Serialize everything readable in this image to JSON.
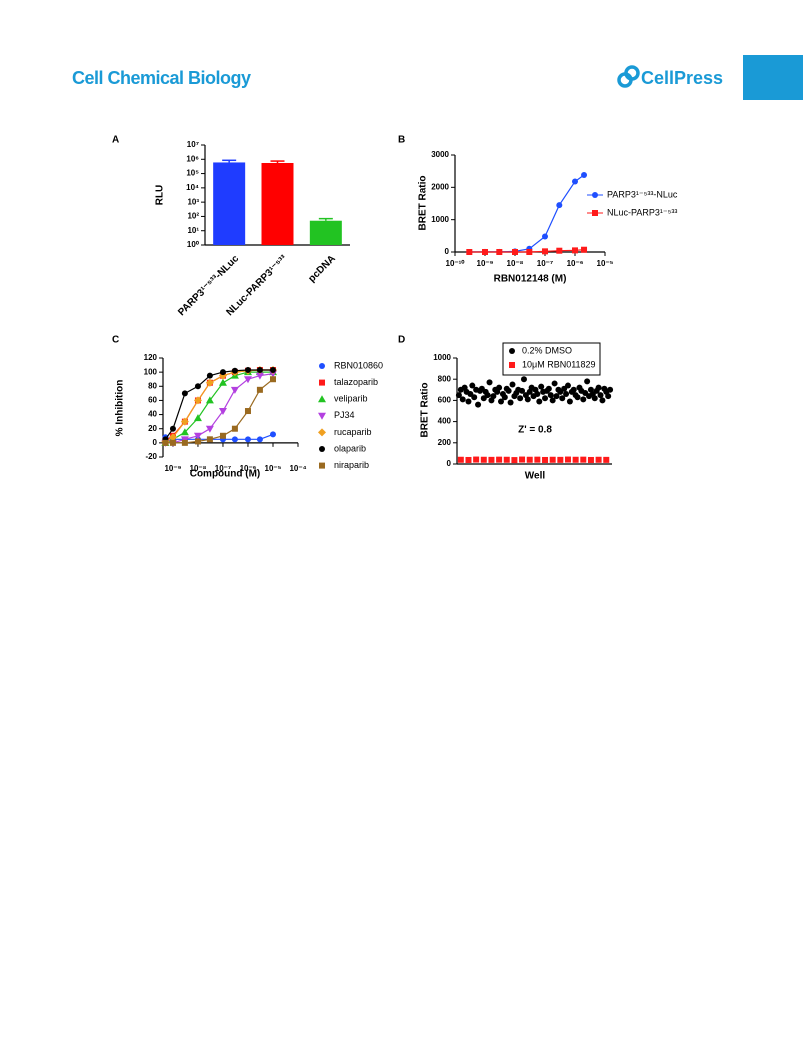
{
  "header": {
    "journal": "Cell Chemical Biology",
    "publisher": "CellPress"
  },
  "chart_data": [
    {
      "type": "bar",
      "panel": "A",
      "ylabel": "RLU",
      "categories": [
        "PARP3¹⁻⁵³³-NLuc",
        "NLuc-PARP3¹⁻⁵³³",
        "pcDNA"
      ],
      "values": [
        600000,
        550000,
        50
      ],
      "errors": [
        250000,
        200000,
        20
      ],
      "colors": [
        "#1f3cff",
        "#ff0000",
        "#22c322"
      ],
      "ylog": true,
      "ylim": [
        1,
        10000000
      ],
      "yticks": [
        {
          "value": 1,
          "label": "10⁰"
        },
        {
          "value": 10,
          "label": "10¹"
        },
        {
          "value": 100,
          "label": "10²"
        },
        {
          "value": 1000,
          "label": "10³"
        },
        {
          "value": 10000,
          "label": "10⁴"
        },
        {
          "value": 100000,
          "label": "10⁵"
        },
        {
          "value": 1000000,
          "label": "10⁶"
        },
        {
          "value": 10000000,
          "label": "10⁷"
        }
      ]
    },
    {
      "type": "line",
      "panel": "B",
      "xlabel": "RBN012148 (M)",
      "ylabel": "BRET Ratio",
      "x": [
        3e-10,
        1e-09,
        3e-09,
        1e-08,
        3e-08,
        1e-07,
        3e-07,
        1e-06,
        2e-06
      ],
      "series": [
        {
          "name": "PARP3¹⁻⁵³³-NLuc",
          "color": "#1f4fff",
          "marker": "circle",
          "values": [
            0,
            5,
            5,
            20,
            100,
            480,
            1450,
            2180,
            2380
          ]
        },
        {
          "name": "NLuc-PARP3¹⁻⁵³³",
          "color": "#ff1a1a",
          "marker": "square",
          "values": [
            0,
            0,
            0,
            0,
            0,
            20,
            40,
            50,
            70
          ]
        }
      ],
      "xlog": true,
      "xlim": [
        1e-10,
        1e-05
      ],
      "xticks": [
        {
          "value": 1e-10,
          "label": "10⁻¹⁰"
        },
        {
          "value": 1e-09,
          "label": "10⁻⁹"
        },
        {
          "value": 1e-08,
          "label": "10⁻⁸"
        },
        {
          "value": 1e-07,
          "label": "10⁻⁷"
        },
        {
          "value": 1e-06,
          "label": "10⁻⁶"
        },
        {
          "value": 1e-05,
          "label": "10⁻⁵"
        }
      ],
      "ylim": [
        0,
        3000
      ],
      "yticks": [
        0,
        1000,
        2000,
        3000
      ]
    },
    {
      "type": "line",
      "panel": "C",
      "xlabel": "Compound (M)",
      "ylabel": "% Inhibition",
      "x": [
        5e-10,
        1e-09,
        3e-09,
        1e-08,
        3e-08,
        1e-07,
        3e-07,
        1e-06,
        3e-06,
        1e-05
      ],
      "series": [
        {
          "name": "RBN010860",
          "color": "#1f4fff",
          "marker": "circle",
          "values": [
            8,
            5,
            5,
            5,
            5,
            5,
            5,
            5,
            5,
            12
          ]
        },
        {
          "name": "talazoparib",
          "color": "#ff1a1a",
          "marker": "square",
          "values": [
            3,
            10,
            30,
            60,
            85,
            95,
            100,
            102,
            103,
            103
          ]
        },
        {
          "name": "veliparib",
          "color": "#22c322",
          "marker": "triangle",
          "values": [
            0,
            5,
            15,
            35,
            60,
            85,
            95,
            100,
            100,
            100
          ]
        },
        {
          "name": "PJ34",
          "color": "#b340e0",
          "marker": "triangle-down",
          "values": [
            0,
            0,
            5,
            10,
            20,
            45,
            75,
            90,
            95,
            98
          ]
        },
        {
          "name": "rucaparib",
          "color": "#f0a020",
          "marker": "diamond",
          "values": [
            2,
            8,
            30,
            60,
            85,
            95,
            100,
            102,
            103,
            103
          ]
        },
        {
          "name": "olaparib",
          "color": "#000000",
          "marker": "circle",
          "values": [
            5,
            20,
            70,
            80,
            95,
            100,
            102,
            103,
            103,
            103
          ]
        },
        {
          "name": "niraparib",
          "color": "#9a6a20",
          "marker": "square",
          "values": [
            0,
            0,
            0,
            2,
            5,
            10,
            20,
            45,
            75,
            90
          ]
        }
      ],
      "xlog": true,
      "xlim": [
        4e-10,
        0.0001
      ],
      "xticks": [
        {
          "value": 1e-09,
          "label": "10⁻⁹"
        },
        {
          "value": 1e-08,
          "label": "10⁻⁸"
        },
        {
          "value": 1e-07,
          "label": "10⁻⁷"
        },
        {
          "value": 1e-06,
          "label": "10⁻⁶"
        },
        {
          "value": 1e-05,
          "label": "10⁻⁵"
        },
        {
          "value": 0.0001,
          "label": "10⁻⁴"
        }
      ],
      "ylim": [
        -20,
        120
      ],
      "yticks": [
        -20,
        0,
        20,
        40,
        60,
        80,
        100,
        120
      ]
    },
    {
      "type": "scatter",
      "panel": "D",
      "xlabel": "Well",
      "ylabel": "BRET Ratio",
      "annotation": "Z' = 0.8",
      "series": [
        {
          "name": "0.2% DMSO",
          "color": "#000000",
          "marker": "circle",
          "x": [
            1,
            2,
            3,
            4,
            5,
            6,
            7,
            8,
            9,
            10,
            11,
            12,
            13,
            14,
            15,
            16,
            17,
            18,
            19,
            20,
            21,
            22,
            23,
            24,
            25,
            26,
            27,
            28,
            29,
            30,
            31,
            32,
            33,
            34,
            35,
            36,
            37,
            38,
            39,
            40,
            41,
            42,
            43,
            44,
            45,
            46,
            47,
            48,
            49,
            50,
            51,
            52,
            53,
            54,
            55,
            56,
            57,
            58,
            59,
            60,
            61,
            62,
            63,
            64,
            65,
            66,
            67,
            68,
            69,
            70,
            71,
            72,
            73,
            74,
            75,
            76,
            77,
            78,
            79,
            80
          ],
          "values": [
            650,
            700,
            610,
            720,
            680,
            590,
            660,
            740,
            630,
            700,
            560,
            690,
            710,
            620,
            680,
            650,
            770,
            600,
            640,
            700,
            680,
            720,
            590,
            660,
            630,
            710,
            690,
            580,
            750,
            640,
            670,
            700,
            620,
            690,
            800,
            650,
            610,
            680,
            720,
            640,
            700,
            660,
            590,
            730,
            680,
            620,
            690,
            710,
            650,
            600,
            760,
            640,
            700,
            680,
            620,
            710,
            660,
            740,
            590,
            680,
            700,
            650,
            630,
            720,
            690,
            610,
            670,
            780,
            640,
            700,
            660,
            620,
            690,
            720,
            650,
            600,
            710,
            680,
            640,
            700
          ]
        },
        {
          "name": "10μM RBN011829",
          "color": "#ff1a1a",
          "marker": "square",
          "x": [
            2,
            6,
            10,
            14,
            18,
            22,
            26,
            30,
            34,
            38,
            42,
            46,
            50,
            54,
            58,
            62,
            66,
            70,
            74,
            78
          ],
          "values": [
            40,
            38,
            42,
            40,
            39,
            41,
            40,
            37,
            42,
            40,
            41,
            38,
            40,
            39,
            42,
            40,
            41,
            38,
            40,
            39
          ]
        }
      ],
      "xlim": [
        0,
        81
      ],
      "ylim": [
        0,
        1000
      ],
      "yticks": [
        0,
        200,
        400,
        600,
        800,
        1000
      ]
    }
  ]
}
